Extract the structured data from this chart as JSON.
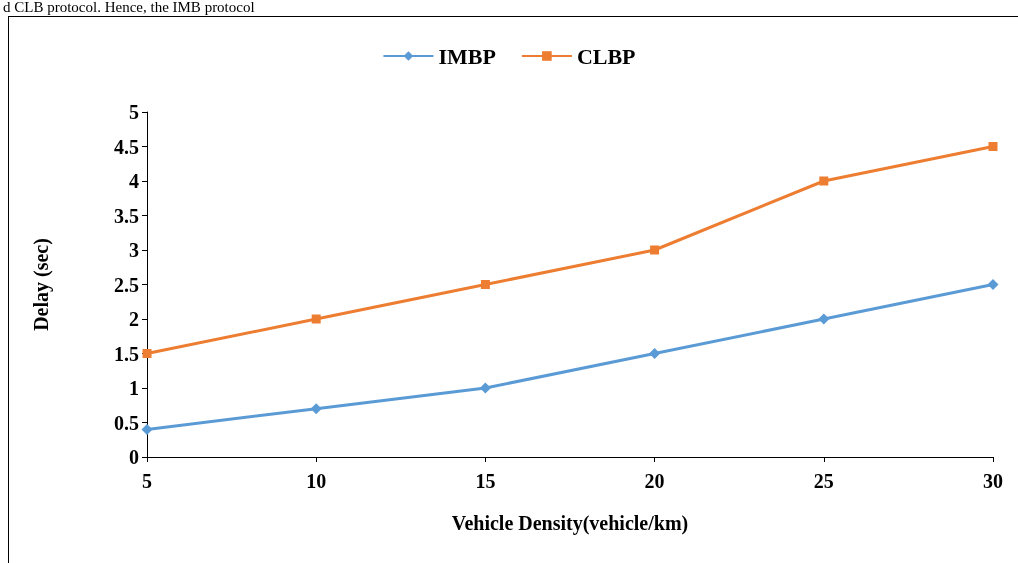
{
  "chart_data": {
    "type": "line",
    "annotations": [
      "d CLB protocol. Hence, the IMB protocol"
    ],
    "xlabel": "Vehicle Density(vehicle/km)",
    "ylabel": "Delay (sec)",
    "x": [
      5,
      10,
      15,
      20,
      25,
      30
    ],
    "series": [
      {
        "name": "IMBP",
        "color": "#5b9bd5",
        "marker": "diamond",
        "values": [
          0.4,
          0.7,
          1,
          1.5,
          2,
          2.5
        ]
      },
      {
        "name": "CLBP",
        "color": "#ed7d31",
        "marker": "square",
        "values": [
          1.5,
          2,
          2.5,
          3,
          4,
          4.5
        ]
      }
    ],
    "xlim": [
      5,
      30
    ],
    "xticks": [
      5,
      10,
      15,
      20,
      25,
      30
    ],
    "ylim": [
      0,
      5
    ],
    "yticks": [
      0,
      0.5,
      1,
      1.5,
      2,
      2.5,
      3,
      3.5,
      4,
      4.5,
      5
    ],
    "grid": false,
    "legend": "top",
    "line_style": "solid"
  }
}
